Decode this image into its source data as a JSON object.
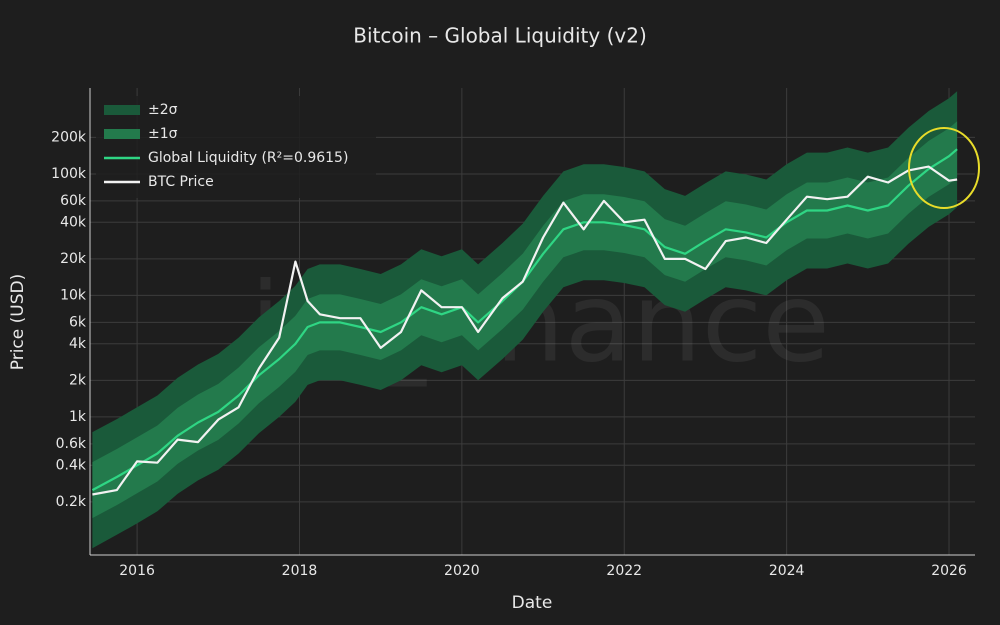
{
  "chart_data": {
    "type": "line",
    "title": "Bitcoin – Global Liquidity (v2)",
    "x_label": "Date",
    "y_label": "Price (USD)",
    "watermark": "jw_finance",
    "log_y": true,
    "grid": true,
    "legend": "top-left",
    "xlim": [
      2015.42,
      2026.32
    ],
    "xticks": [
      2016,
      2018,
      2020,
      2022,
      2024,
      2026
    ],
    "ylim": [
      73,
      510000
    ],
    "yticks": [
      {
        "value": 200,
        "label": "0.2k"
      },
      {
        "value": 400,
        "label": "0.4k"
      },
      {
        "value": 600,
        "label": "0.6k"
      },
      {
        "value": 1000,
        "label": "1k"
      },
      {
        "value": 2000,
        "label": "2k"
      },
      {
        "value": 4000,
        "label": "4k"
      },
      {
        "value": 6000,
        "label": "6k"
      },
      {
        "value": 10000,
        "label": "10k"
      },
      {
        "value": 20000,
        "label": "20k"
      },
      {
        "value": 40000,
        "label": "40k"
      },
      {
        "value": 60000,
        "label": "60k"
      },
      {
        "value": 100000,
        "label": "100k"
      },
      {
        "value": 200000,
        "label": "200k"
      }
    ],
    "x": [
      2015.45,
      2015.75,
      2016.0,
      2016.25,
      2016.5,
      2016.75,
      2017.0,
      2017.25,
      2017.5,
      2017.75,
      2017.95,
      2018.1,
      2018.25,
      2018.5,
      2018.75,
      2019.0,
      2019.25,
      2019.5,
      2019.75,
      2020.0,
      2020.2,
      2020.5,
      2020.75,
      2021.0,
      2021.25,
      2021.5,
      2021.75,
      2022.0,
      2022.25,
      2022.5,
      2022.75,
      2023.0,
      2023.25,
      2023.5,
      2023.75,
      2024.0,
      2024.25,
      2024.5,
      2024.75,
      2025.0,
      2025.25,
      2025.5,
      2025.75,
      2026.0,
      2026.1
    ],
    "series": [
      {
        "name": "±2σ",
        "kind": "band",
        "color": "#1a5a3a",
        "lower": [
          83,
          107,
          133,
          167,
          233,
          300,
          367,
          500,
          733,
          1000,
          1333,
          1833,
          2000,
          2000,
          1833,
          1667,
          2000,
          2667,
          2333,
          2667,
          2000,
          3000,
          4333,
          7333,
          11667,
          13333,
          13333,
          12667,
          11667,
          8333,
          7333,
          9333,
          11667,
          11000,
          10000,
          13333,
          16667,
          16667,
          18333,
          16667,
          18333,
          26667,
          36667,
          46667,
          53333
        ],
        "upper": [
          750,
          960,
          1200,
          1500,
          2100,
          2700,
          3300,
          4500,
          6600,
          9000,
          12000,
          16500,
          18000,
          18000,
          16500,
          15000,
          18000,
          24000,
          21000,
          24000,
          18000,
          27000,
          39000,
          66000,
          105000,
          120000,
          120000,
          114000,
          105000,
          75000,
          66000,
          84000,
          105000,
          99000,
          90000,
          120000,
          150000,
          150000,
          165000,
          150000,
          165000,
          240000,
          330000,
          420000,
          480000
        ]
      },
      {
        "name": "±1σ",
        "kind": "band",
        "color": "#237a4c",
        "lower": [
          147,
          188,
          235,
          294,
          412,
          529,
          647,
          882,
          1294,
          1765,
          2353,
          3235,
          3529,
          3529,
          3235,
          2941,
          3529,
          4706,
          4118,
          4706,
          3529,
          5294,
          7647,
          12941,
          20588,
          23529,
          23529,
          22353,
          20588,
          14706,
          12941,
          16471,
          20588,
          19412,
          17647,
          23529,
          29412,
          29412,
          32353,
          29412,
          32353,
          47059,
          64706,
          82353,
          94118
        ],
        "upper": [
          425,
          544,
          680,
          850,
          1190,
          1530,
          1870,
          2550,
          3740,
          5100,
          6800,
          9350,
          10200,
          10200,
          9350,
          8500,
          10200,
          13600,
          11900,
          13600,
          10200,
          15300,
          22100,
          37400,
          59500,
          68000,
          68000,
          64600,
          59500,
          42500,
          37400,
          47600,
          59500,
          56100,
          51000,
          68000,
          85000,
          85000,
          93500,
          85000,
          93500,
          136000,
          187000,
          238000,
          272000
        ]
      },
      {
        "name": "Global Liquidity (R²=0.9615)",
        "kind": "line",
        "color": "#2fd684",
        "values": [
          250,
          320,
          400,
          500,
          700,
          900,
          1100,
          1500,
          2200,
          3000,
          4000,
          5500,
          6000,
          6000,
          5500,
          5000,
          6000,
          8000,
          7000,
          8000,
          6000,
          9000,
          13000,
          22000,
          35000,
          40000,
          40000,
          38000,
          35000,
          25000,
          22000,
          28000,
          35000,
          33000,
          30000,
          40000,
          50000,
          50000,
          55000,
          50000,
          55000,
          80000,
          110000,
          140000,
          160000
        ]
      },
      {
        "name": "BTC Price",
        "kind": "line",
        "color": "#f2f2f2",
        "values": [
          230,
          250,
          430,
          420,
          650,
          620,
          950,
          1200,
          2500,
          4500,
          19000,
          9000,
          7000,
          6500,
          6500,
          3700,
          5000,
          11000,
          8000,
          8000,
          5000,
          9500,
          13000,
          30000,
          58000,
          35000,
          60000,
          40000,
          42000,
          20000,
          20000,
          16500,
          28000,
          30000,
          27000,
          42000,
          65000,
          62000,
          65000,
          95000,
          85000,
          107000,
          115000,
          88000,
          90000
        ]
      }
    ]
  }
}
